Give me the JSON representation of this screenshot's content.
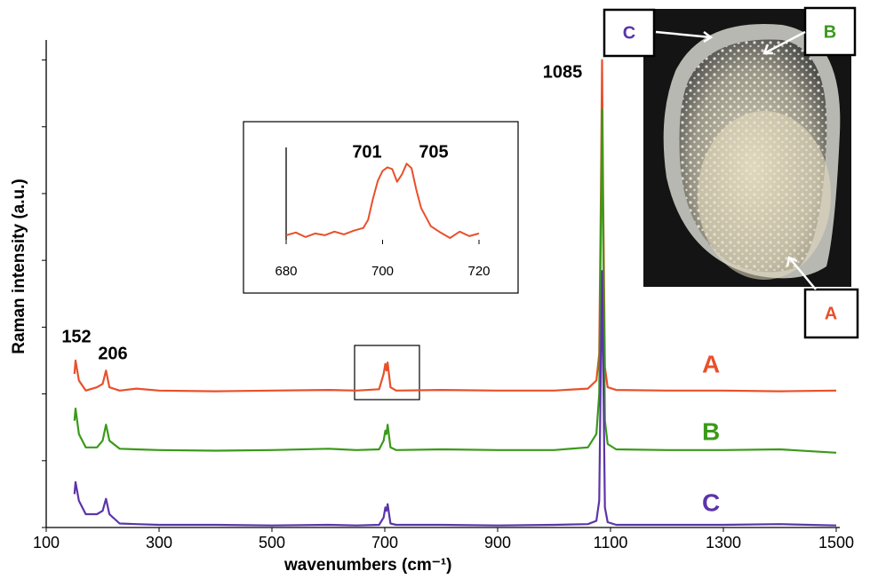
{
  "chart_data": [
    {
      "type": "line",
      "x_label": "wavenumbers  (cm⁻¹)",
      "y_label": "Raman intensity (a.u.)",
      "x": [
        150,
        152,
        158,
        170,
        190,
        200,
        206,
        212,
        230,
        260,
        300,
        400,
        500,
        600,
        650,
        690,
        698,
        701,
        703,
        705,
        710,
        720,
        800,
        900,
        1000,
        1060,
        1075,
        1080,
        1083,
        1085,
        1087,
        1090,
        1095,
        1110,
        1200,
        1300,
        1400,
        1500
      ],
      "series": [
        {
          "name": "A",
          "color": "#e8502a",
          "values": [
            2.3,
            2.5,
            2.2,
            2.05,
            2.1,
            2.15,
            2.35,
            2.1,
            2.05,
            2.08,
            2.05,
            2.04,
            2.05,
            2.06,
            2.05,
            2.07,
            2.3,
            2.45,
            2.35,
            2.47,
            2.1,
            2.05,
            2.06,
            2.05,
            2.05,
            2.08,
            2.2,
            2.6,
            5.0,
            7.0,
            5.0,
            2.4,
            2.1,
            2.06,
            2.05,
            2.05,
            2.04,
            2.05
          ]
        },
        {
          "name": "B",
          "color": "#3a9a1a",
          "values": [
            1.6,
            1.78,
            1.4,
            1.2,
            1.2,
            1.3,
            1.54,
            1.3,
            1.18,
            1.17,
            1.16,
            1.15,
            1.16,
            1.18,
            1.16,
            1.17,
            1.3,
            1.45,
            1.4,
            1.54,
            1.2,
            1.16,
            1.17,
            1.16,
            1.16,
            1.2,
            1.4,
            2.0,
            4.5,
            6.26,
            4.5,
            1.6,
            1.25,
            1.17,
            1.16,
            1.16,
            1.17,
            1.12
          ]
        },
        {
          "name": "C",
          "color": "#5b35a8",
          "values": [
            0.5,
            0.68,
            0.4,
            0.2,
            0.2,
            0.25,
            0.43,
            0.2,
            0.06,
            0.05,
            0.04,
            0.04,
            0.03,
            0.04,
            0.03,
            0.04,
            0.15,
            0.3,
            0.25,
            0.35,
            0.06,
            0.04,
            0.04,
            0.03,
            0.04,
            0.05,
            0.1,
            0.4,
            2.5,
            3.84,
            2.5,
            0.3,
            0.08,
            0.04,
            0.04,
            0.04,
            0.05,
            0.03
          ]
        }
      ],
      "xlim": [
        100,
        1500
      ],
      "xticks": [
        100,
        300,
        500,
        700,
        900,
        1100,
        1300,
        1500
      ],
      "ylim": [
        0,
        7.3
      ],
      "yticks": [
        0,
        1,
        2,
        3,
        4,
        5,
        6,
        7
      ],
      "annotations": [
        "152",
        "206",
        "1085"
      ]
    },
    {
      "type": "line",
      "x": [
        680,
        682,
        684,
        686,
        688,
        690,
        692,
        694,
        696,
        697,
        698,
        699,
        700,
        701,
        702,
        703,
        704,
        705,
        706,
        707,
        708,
        710,
        712,
        714,
        716,
        718,
        720
      ],
      "series": [
        {
          "color": "#e8502a",
          "values": [
            0.5,
            0.8,
            0.3,
            0.7,
            0.5,
            0.9,
            0.6,
            1.0,
            1.3,
            2.2,
            4.5,
            6.5,
            7.6,
            8.0,
            7.8,
            6.4,
            7.2,
            8.4,
            7.9,
            5.5,
            3.5,
            1.5,
            0.8,
            0.2,
            0.9,
            0.4,
            0.7
          ]
        }
      ],
      "xlim": [
        680,
        720
      ],
      "xticks": [
        680,
        700,
        720
      ],
      "ylim": [
        0,
        10
      ],
      "annotations": [
        "701",
        "705"
      ]
    }
  ],
  "image_labels": [
    "C",
    "B",
    "A"
  ]
}
